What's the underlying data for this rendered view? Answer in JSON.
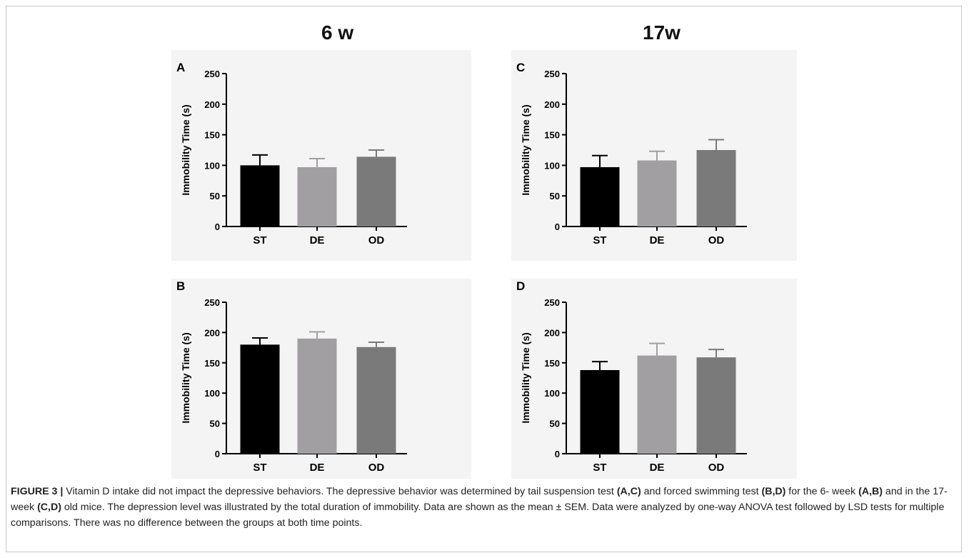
{
  "column_titles": [
    "6 w",
    "17w"
  ],
  "caption": {
    "label": "FIGURE 3 |",
    "segments": [
      {
        "text": " Vitamin D intake did not impact the depressive behaviors. The depressive behavior was determined by tail suspension test ",
        "bold": false
      },
      {
        "text": "(A,C)",
        "bold": true
      },
      {
        "text": " and forced swimming test ",
        "bold": false
      },
      {
        "text": "(B,D)",
        "bold": true
      },
      {
        "text": " for the 6- week ",
        "bold": false
      },
      {
        "text": "(A,B)",
        "bold": true
      },
      {
        "text": " and in the 17-week ",
        "bold": false
      },
      {
        "text": "(C,D)",
        "bold": true
      },
      {
        "text": " old mice. The depression level was illustrated by the total duration of immobility. Data are shown as the mean ± SEM. Data were analyzed by one-way ANOVA test followed by LSD tests for multiple comparisons. There was no difference between the groups at both time points.",
        "bold": false
      }
    ]
  },
  "colors": {
    "ST": "#000000",
    "DE": "#a19fa2",
    "OD": "#7a7a7a",
    "panel_bg": "#f4f4f4"
  },
  "chart_data": [
    {
      "panel": "A",
      "type": "bar",
      "categories": [
        "ST",
        "DE",
        "OD"
      ],
      "values": [
        100,
        97,
        114
      ],
      "errors": [
        17,
        14,
        11
      ],
      "ylabel": "Immobility Time (s)",
      "ylim": [
        0,
        250
      ],
      "yticks": [
        0,
        50,
        100,
        150,
        200,
        250
      ]
    },
    {
      "panel": "B",
      "type": "bar",
      "categories": [
        "ST",
        "DE",
        "OD"
      ],
      "values": [
        180,
        190,
        176
      ],
      "errors": [
        11,
        11,
        8
      ],
      "ylabel": "Immobility Time (s)",
      "ylim": [
        0,
        250
      ],
      "yticks": [
        0,
        50,
        100,
        150,
        200,
        250
      ]
    },
    {
      "panel": "C",
      "type": "bar",
      "categories": [
        "ST",
        "DE",
        "OD"
      ],
      "values": [
        97,
        108,
        125
      ],
      "errors": [
        19,
        15,
        17
      ],
      "ylabel": "Immobility Time (s)",
      "ylim": [
        0,
        250
      ],
      "yticks": [
        0,
        50,
        100,
        150,
        200,
        250
      ]
    },
    {
      "panel": "D",
      "type": "bar",
      "categories": [
        "ST",
        "DE",
        "OD"
      ],
      "values": [
        138,
        162,
        159
      ],
      "errors": [
        14,
        20,
        13
      ],
      "ylabel": "Immobility Time (s)",
      "ylim": [
        0,
        250
      ],
      "yticks": [
        0,
        50,
        100,
        150,
        200,
        250
      ]
    }
  ]
}
